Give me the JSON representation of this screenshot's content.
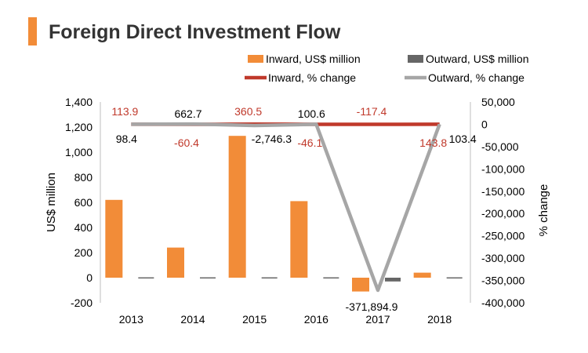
{
  "chart_data": {
    "type": "bar",
    "title": "Foreign Direct Investment Flow",
    "categories": [
      "2013",
      "2014",
      "2015",
      "2016",
      "2017",
      "2018"
    ],
    "ylabel": "US$ million",
    "y2label": "% change",
    "ylim": [
      -200,
      1400
    ],
    "y2lim": [
      -400000,
      50000
    ],
    "yticks": [
      "1,400",
      "1,200",
      "1,000",
      "800",
      "600",
      "400",
      "200",
      "0",
      "-200"
    ],
    "y2ticks": [
      "50,000",
      "0",
      "-50,000",
      "-100,000",
      "-150,000",
      "-200,000",
      "-250,000",
      "-300,000",
      "-350,000",
      "-400,000"
    ],
    "legend_position": "top",
    "series": [
      {
        "name": "Inward, US$ million",
        "kind": "bar",
        "axis": "left",
        "color": "#F28C38",
        "values": [
          620,
          240,
          1130,
          610,
          -110,
          40
        ]
      },
      {
        "name": "Outward, US$ million",
        "kind": "bar",
        "axis": "left",
        "color": "#666666",
        "values": [
          3,
          3,
          3,
          3,
          -30,
          3
        ]
      },
      {
        "name": "Inward, % change",
        "kind": "line",
        "axis": "right",
        "color": "#C0392B",
        "values": [
          113.9,
          -60.4,
          360.5,
          -46.1,
          -117.4,
          143.8
        ],
        "labels": [
          "113.9",
          "-60.4",
          "360.5",
          "-46.1",
          "-117.4",
          "143.8"
        ]
      },
      {
        "name": "Outward, % change",
        "kind": "line",
        "axis": "right",
        "color": "#A6A6A6",
        "values": [
          98.4,
          662.7,
          -2746.3,
          100.6,
          -371894.9,
          103.4
        ],
        "labels": [
          "98.4",
          "662.7",
          "-2,746.3",
          "100.6",
          "-371,894.9",
          "103.4"
        ]
      }
    ]
  }
}
